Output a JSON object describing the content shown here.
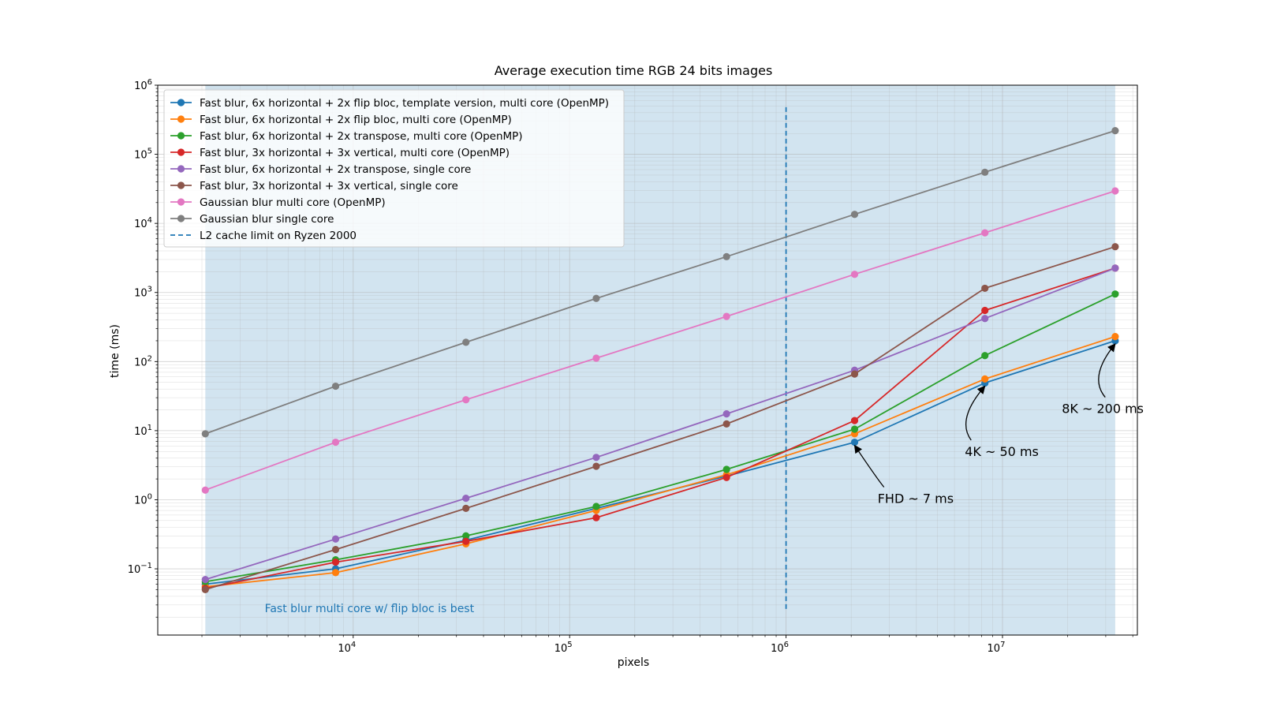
{
  "chart_data": {
    "type": "line",
    "title": "Average execution time RGB 24 bits images",
    "xlabel": "pixels",
    "ylabel": "time (ms)",
    "xscale": "log",
    "yscale": "log",
    "xlim": [
      1250,
      42000000
    ],
    "ylim": [
      0.011,
      1000000
    ],
    "x": [
      2073.6,
      8294.4,
      33177.6,
      132710.4,
      530841.6,
      2073600,
      8294400,
      33177600
    ],
    "x_ticks": [
      {
        "value": 10000,
        "base": "10",
        "exp": "4"
      },
      {
        "value": 100000,
        "base": "10",
        "exp": "5"
      },
      {
        "value": 1000000,
        "base": "10",
        "exp": "6"
      },
      {
        "value": 10000000,
        "base": "10",
        "exp": "7"
      }
    ],
    "y_ticks": [
      {
        "value": 0.1,
        "base": "10",
        "exp": "−1"
      },
      {
        "value": 1,
        "base": "10",
        "exp": "0"
      },
      {
        "value": 10,
        "base": "10",
        "exp": "1"
      },
      {
        "value": 100,
        "base": "10",
        "exp": "2"
      },
      {
        "value": 1000,
        "base": "10",
        "exp": "3"
      },
      {
        "value": 10000,
        "base": "10",
        "exp": "4"
      },
      {
        "value": 100000,
        "base": "10",
        "exp": "5"
      },
      {
        "value": 1000000,
        "base": "10",
        "exp": "6"
      }
    ],
    "grid": true,
    "legend_position": "top-left",
    "series": [
      {
        "name": "Fast blur, 6x horizontal + 2x flip bloc, template version, multi core (OpenMP)",
        "color": "#1f77b4",
        "values": [
          0.06,
          0.1,
          0.26,
          0.75,
          2.2,
          6.8,
          49,
          200
        ]
      },
      {
        "name": "Fast blur, 6x horizontal + 2x flip bloc, multi core (OpenMP)",
        "color": "#ff7f0e",
        "values": [
          0.055,
          0.088,
          0.23,
          0.7,
          2.3,
          9,
          56,
          230
        ]
      },
      {
        "name": "Fast blur, 6x horizontal + 2x transpose, multi core (OpenMP)",
        "color": "#2ca02c",
        "values": [
          0.065,
          0.135,
          0.3,
          0.8,
          2.75,
          10.5,
          122,
          950
        ]
      },
      {
        "name": "Fast blur, 3x horizontal + 3x vertical, multi core (OpenMP)",
        "color": "#d62728",
        "values": [
          0.052,
          0.125,
          0.25,
          0.55,
          2.1,
          14,
          550,
          2250
        ]
      },
      {
        "name": "Fast blur, 6x horizontal + 2x transpose, single core",
        "color": "#9467bd",
        "values": [
          0.07,
          0.27,
          1.05,
          4.1,
          17.5,
          75,
          420,
          2250
        ]
      },
      {
        "name": "Fast blur, 3x horizontal + 3x vertical, single core",
        "color": "#8c564b",
        "values": [
          0.05,
          0.19,
          0.75,
          3.05,
          12.5,
          66,
          1150,
          4600
        ]
      },
      {
        "name": "Gaussian blur multi core (OpenMP)",
        "color": "#e377c2",
        "values": [
          1.38,
          6.8,
          28,
          112,
          450,
          1830,
          7300,
          29500
        ]
      },
      {
        "name": "Gaussian blur single core",
        "color": "#7f7f7f",
        "values": [
          9,
          44,
          190,
          820,
          3300,
          13500,
          55000,
          220000
        ]
      }
    ],
    "vline": {
      "name": "L2 cache limit on Ryzen 2000",
      "x": 1000000,
      "y_range": [
        0.024,
        480000
      ],
      "color": "#1f77b4"
    },
    "highlight_span": {
      "x_range": [
        2073.6,
        33177600
      ],
      "color": "#1f77b4"
    },
    "note": {
      "text": "Fast blur multi core w/ flip bloc is best",
      "x": 3900,
      "y": 0.0235
    },
    "annotations": [
      {
        "text": "FHD ~ 7 ms",
        "text_x": 2650000,
        "text_y": 0.9,
        "arrow_to_x": 2073600,
        "arrow_to_y": 6.8
      },
      {
        "text": "4K ~ 50 ms",
        "text_x": 6700000,
        "text_y": 4.3,
        "arrow_to_x": 8294400,
        "arrow_to_y": 49
      },
      {
        "text": "8K ~ 200 ms",
        "text_x": 18800000,
        "text_y": 18,
        "arrow_to_x": 33177600,
        "arrow_to_y": 200
      }
    ]
  }
}
